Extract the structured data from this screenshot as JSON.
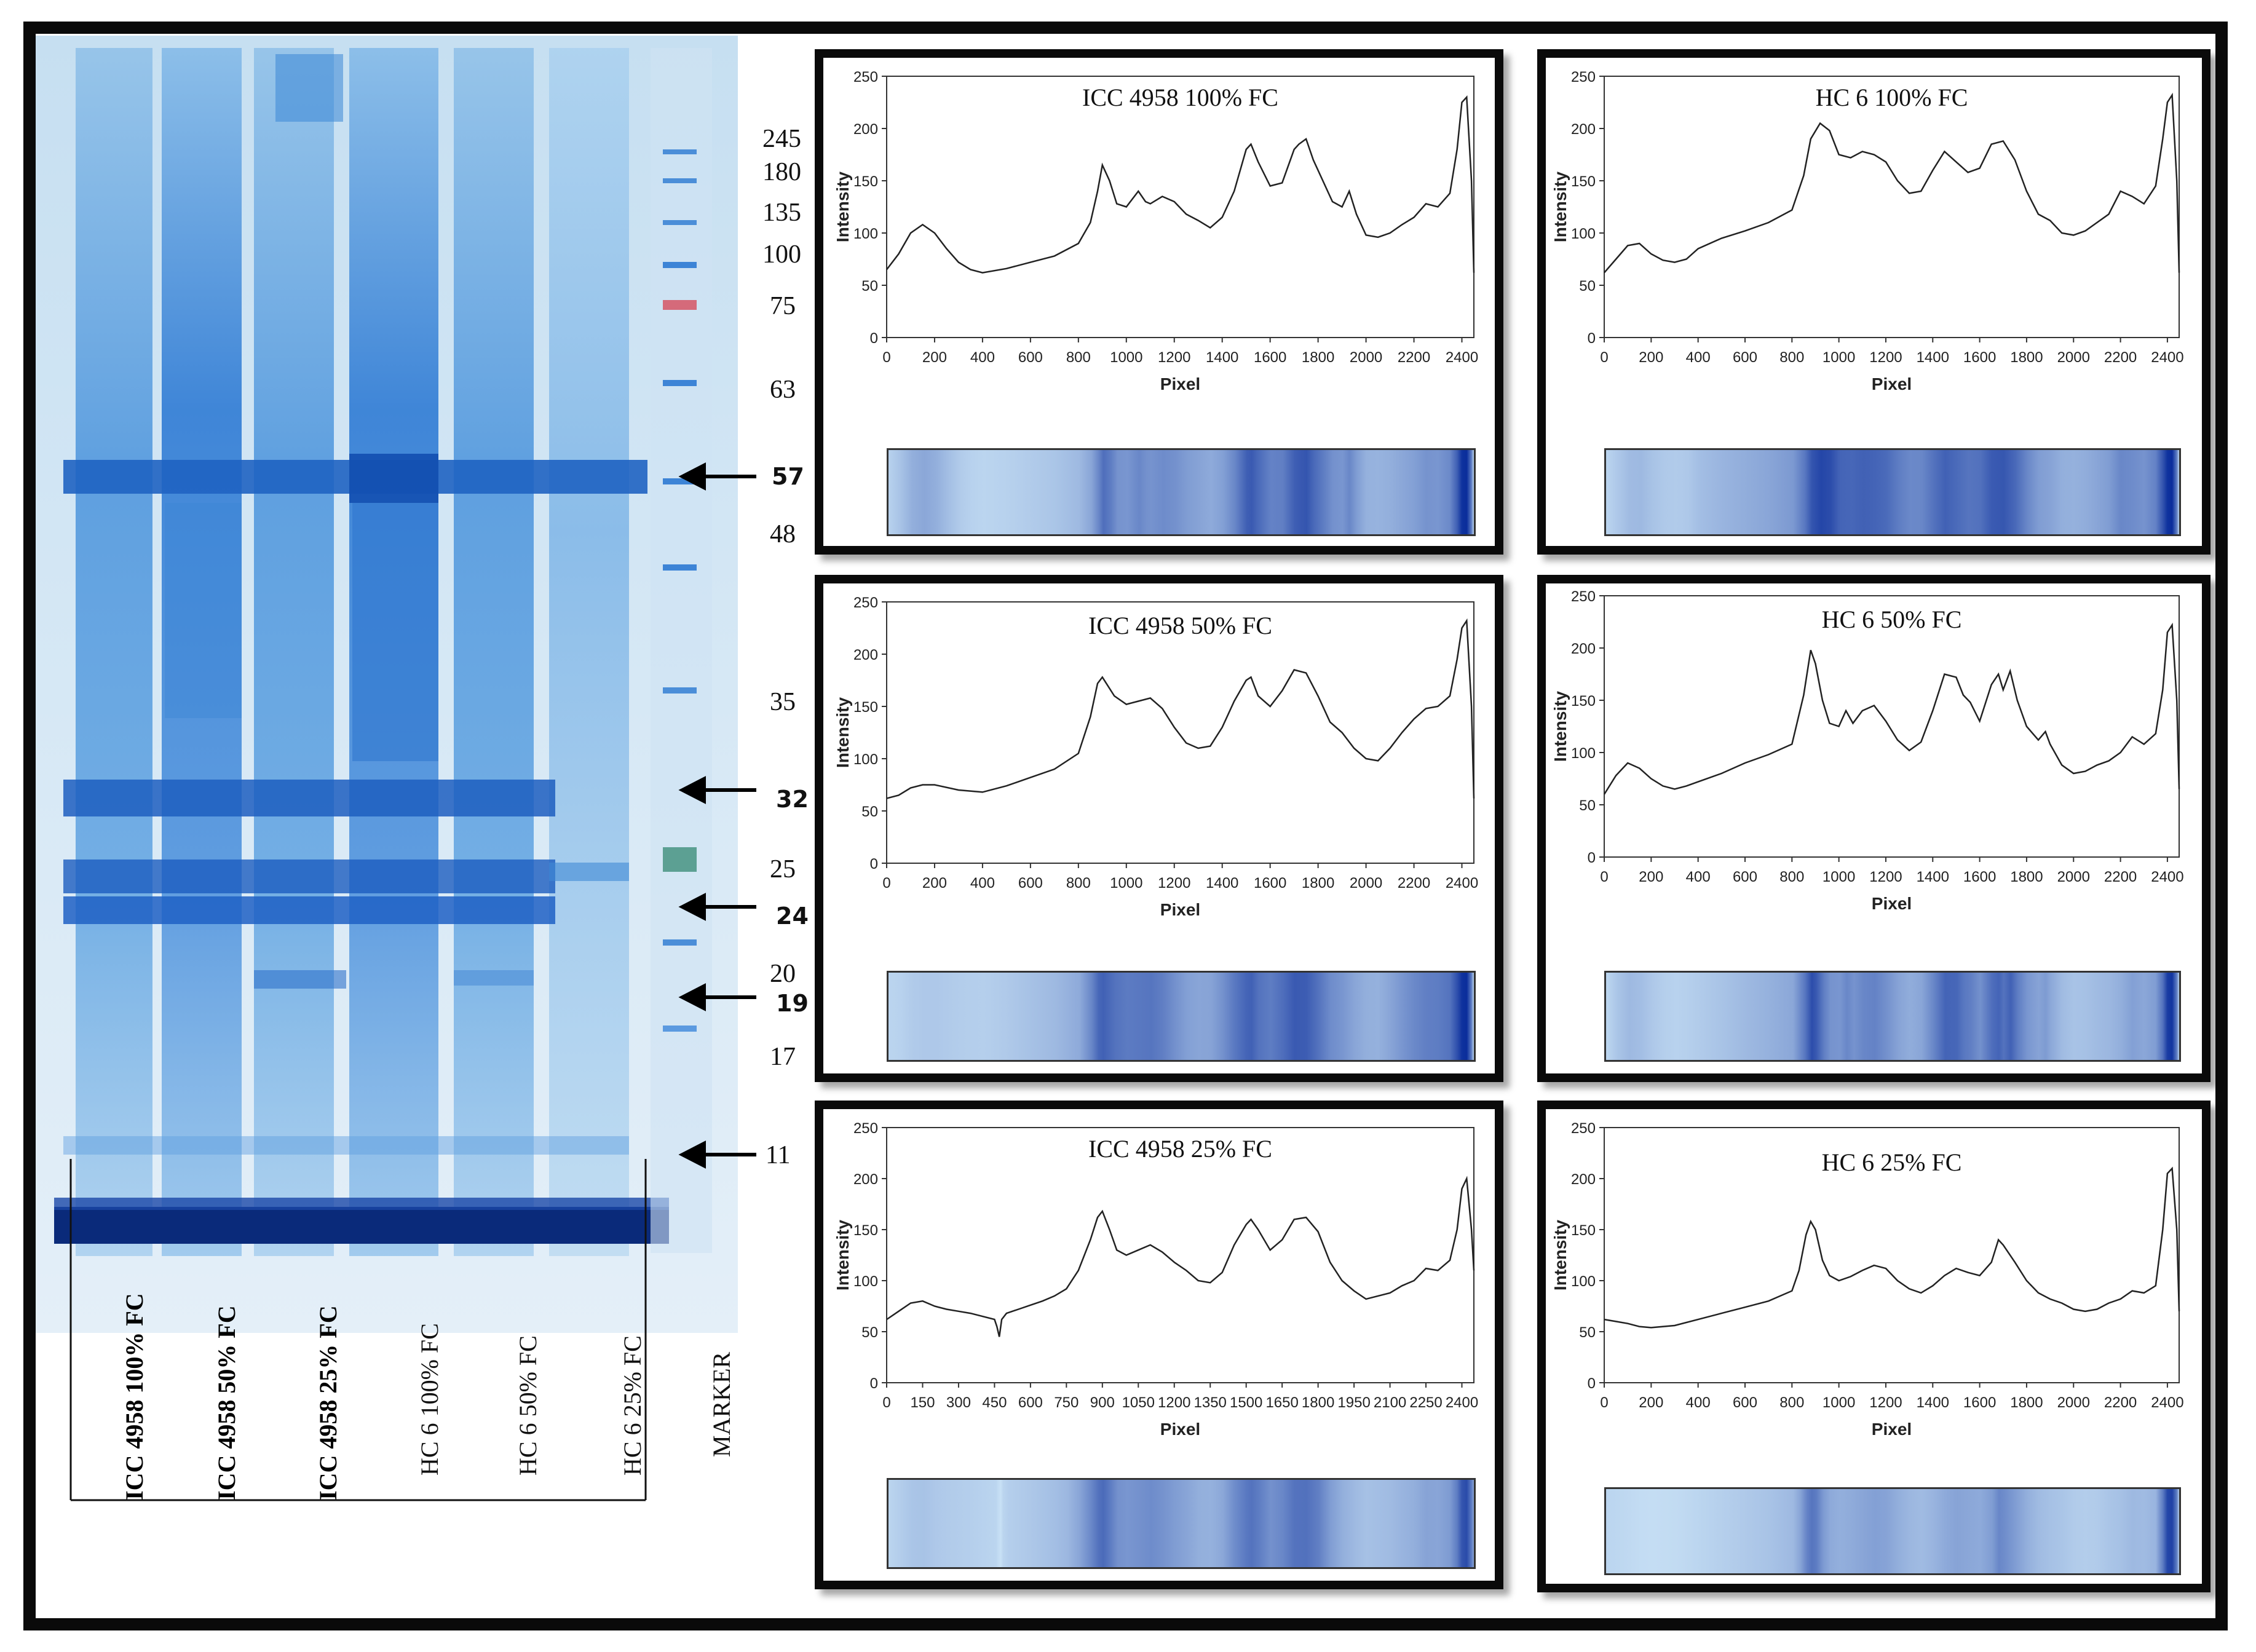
{
  "gel": {
    "mw_markers": [
      "245",
      "180",
      "135",
      "100",
      "75",
      "63",
      "48",
      "35",
      "25",
      "20",
      "17"
    ],
    "arrow_labels": [
      "57",
      "32",
      "24",
      "19",
      "11"
    ],
    "lanes": [
      "ICC 4958 100% FC",
      "ICC 4958 50% FC",
      "ICC 4958 25% FC",
      "HC 6 100% FC",
      "HC 6 50% FC",
      "HC 6 25% FC",
      "MARKER"
    ]
  },
  "chart_data": [
    {
      "type": "line",
      "title": "ICC 4958 100% FC",
      "xlabel": "Pixel",
      "ylabel": "Intensity",
      "xlim": [
        0,
        2450
      ],
      "ylim": [
        0,
        250
      ],
      "xticks": [
        "0",
        "200",
        "400",
        "600",
        "800",
        "1000",
        "1200",
        "1400",
        "1600",
        "1800",
        "2000",
        "2200",
        "2400"
      ],
      "yticks": [
        "0",
        "50",
        "100",
        "150",
        "200",
        "250"
      ],
      "x": [
        0,
        50,
        100,
        150,
        200,
        250,
        300,
        350,
        400,
        500,
        600,
        700,
        800,
        850,
        880,
        900,
        930,
        960,
        1000,
        1050,
        1080,
        1100,
        1150,
        1200,
        1250,
        1300,
        1350,
        1400,
        1450,
        1500,
        1520,
        1550,
        1600,
        1650,
        1700,
        1720,
        1750,
        1780,
        1820,
        1860,
        1900,
        1930,
        1960,
        2000,
        2050,
        2100,
        2150,
        2200,
        2250,
        2300,
        2350,
        2380,
        2400,
        2420,
        2440,
        2450
      ],
      "y": [
        65,
        80,
        100,
        108,
        100,
        85,
        72,
        65,
        62,
        66,
        72,
        78,
        90,
        110,
        140,
        165,
        150,
        128,
        125,
        140,
        130,
        128,
        135,
        130,
        118,
        112,
        105,
        115,
        140,
        180,
        185,
        168,
        145,
        148,
        180,
        185,
        190,
        170,
        150,
        130,
        125,
        140,
        118,
        98,
        96,
        100,
        108,
        115,
        128,
        125,
        138,
        180,
        225,
        230,
        150,
        62
      ]
    },
    {
      "type": "line",
      "title": "HC 6 100% FC",
      "xlabel": "Pixel",
      "ylabel": "Intensity",
      "xlim": [
        0,
        2450
      ],
      "ylim": [
        0,
        250
      ],
      "xticks": [
        "0",
        "200",
        "400",
        "600",
        "800",
        "1000",
        "1200",
        "1400",
        "1600",
        "1800",
        "2000",
        "2200",
        "2400"
      ],
      "yticks": [
        "0",
        "50",
        "100",
        "150",
        "200",
        "250"
      ],
      "x": [
        0,
        50,
        100,
        150,
        200,
        250,
        300,
        350,
        400,
        500,
        600,
        700,
        800,
        850,
        880,
        920,
        960,
        1000,
        1050,
        1100,
        1150,
        1200,
        1250,
        1300,
        1350,
        1400,
        1450,
        1500,
        1550,
        1600,
        1650,
        1700,
        1750,
        1800,
        1850,
        1900,
        1950,
        2000,
        2050,
        2100,
        2150,
        2200,
        2250,
        2300,
        2350,
        2380,
        2400,
        2420,
        2440,
        2450
      ],
      "y": [
        62,
        75,
        88,
        90,
        80,
        74,
        72,
        75,
        85,
        95,
        102,
        110,
        122,
        155,
        190,
        205,
        198,
        175,
        172,
        178,
        175,
        168,
        150,
        138,
        140,
        160,
        178,
        168,
        158,
        162,
        185,
        188,
        170,
        140,
        118,
        112,
        100,
        98,
        102,
        110,
        118,
        140,
        135,
        128,
        145,
        190,
        225,
        232,
        150,
        62
      ]
    },
    {
      "type": "line",
      "title": "ICC 4958 50% FC",
      "xlabel": "Pixel",
      "ylabel": "Intensity",
      "xlim": [
        0,
        2450
      ],
      "ylim": [
        0,
        250
      ],
      "xticks": [
        "0",
        "200",
        "400",
        "600",
        "800",
        "1000",
        "1200",
        "1400",
        "1600",
        "1800",
        "2000",
        "2200",
        "2400"
      ],
      "yticks": [
        "0",
        "50",
        "100",
        "150",
        "200",
        "250"
      ],
      "x": [
        0,
        50,
        100,
        150,
        200,
        300,
        400,
        500,
        600,
        700,
        800,
        850,
        880,
        900,
        950,
        1000,
        1050,
        1100,
        1150,
        1200,
        1250,
        1300,
        1350,
        1400,
        1450,
        1500,
        1520,
        1550,
        1600,
        1650,
        1700,
        1750,
        1800,
        1850,
        1900,
        1950,
        2000,
        2050,
        2100,
        2150,
        2200,
        2250,
        2300,
        2350,
        2380,
        2400,
        2420,
        2440,
        2450
      ],
      "y": [
        62,
        65,
        72,
        75,
        75,
        70,
        68,
        74,
        82,
        90,
        105,
        140,
        172,
        178,
        160,
        152,
        155,
        158,
        148,
        130,
        115,
        110,
        112,
        130,
        155,
        175,
        178,
        160,
        150,
        165,
        185,
        182,
        160,
        135,
        125,
        110,
        100,
        98,
        110,
        125,
        138,
        148,
        150,
        160,
        195,
        225,
        232,
        150,
        62
      ]
    },
    {
      "type": "line",
      "title": "HC 6 50% FC",
      "xlabel": "Pixel",
      "ylabel": "Intensity",
      "xlim": [
        0,
        2450
      ],
      "ylim": [
        0,
        250
      ],
      "xticks": [
        "0",
        "200",
        "400",
        "600",
        "800",
        "1000",
        "1200",
        "1400",
        "1600",
        "1800",
        "2000",
        "2200",
        "2400"
      ],
      "yticks": [
        "0",
        "50",
        "100",
        "150",
        "200",
        "250"
      ],
      "x": [
        0,
        50,
        100,
        150,
        200,
        250,
        300,
        350,
        400,
        500,
        600,
        700,
        800,
        850,
        880,
        900,
        930,
        960,
        1000,
        1030,
        1060,
        1100,
        1150,
        1200,
        1250,
        1300,
        1350,
        1400,
        1450,
        1500,
        1530,
        1560,
        1600,
        1650,
        1680,
        1700,
        1730,
        1760,
        1800,
        1850,
        1880,
        1900,
        1950,
        2000,
        2050,
        2100,
        2150,
        2200,
        2250,
        2300,
        2350,
        2380,
        2400,
        2420,
        2440,
        2450
      ],
      "y": [
        60,
        78,
        90,
        85,
        75,
        68,
        65,
        68,
        72,
        80,
        90,
        98,
        108,
        155,
        198,
        185,
        150,
        128,
        125,
        140,
        128,
        140,
        145,
        130,
        112,
        102,
        110,
        140,
        175,
        172,
        155,
        148,
        130,
        165,
        175,
        160,
        178,
        150,
        125,
        112,
        120,
        108,
        88,
        80,
        82,
        88,
        92,
        100,
        115,
        108,
        118,
        160,
        215,
        222,
        150,
        65
      ]
    },
    {
      "type": "line",
      "title": "ICC 4958 25% FC",
      "xlabel": "Pixel",
      "ylabel": "Intensity",
      "xlim": [
        0,
        2450
      ],
      "ylim": [
        0,
        250
      ],
      "xticks": [
        "0",
        "150",
        "300",
        "450",
        "600",
        "750",
        "900",
        "1050",
        "1200",
        "1350",
        "1500",
        "1650",
        "1800",
        "1950",
        "2100",
        "2250",
        "2400"
      ],
      "yticks": [
        "0",
        "50",
        "100",
        "150",
        "200",
        "250"
      ],
      "x": [
        0,
        50,
        100,
        150,
        200,
        250,
        300,
        350,
        400,
        450,
        460,
        470,
        480,
        500,
        550,
        600,
        650,
        700,
        750,
        800,
        850,
        880,
        900,
        930,
        960,
        1000,
        1050,
        1100,
        1150,
        1200,
        1250,
        1300,
        1350,
        1400,
        1450,
        1500,
        1520,
        1550,
        1600,
        1650,
        1700,
        1750,
        1800,
        1850,
        1900,
        1950,
        2000,
        2050,
        2100,
        2150,
        2200,
        2250,
        2300,
        2350,
        2380,
        2400,
        2420,
        2440,
        2450
      ],
      "y": [
        62,
        70,
        78,
        80,
        75,
        72,
        70,
        68,
        65,
        62,
        55,
        45,
        62,
        68,
        72,
        76,
        80,
        85,
        92,
        110,
        140,
        162,
        168,
        150,
        130,
        125,
        130,
        135,
        128,
        118,
        110,
        100,
        98,
        108,
        135,
        155,
        160,
        150,
        130,
        140,
        160,
        162,
        148,
        118,
        100,
        90,
        82,
        85,
        88,
        95,
        100,
        112,
        110,
        120,
        150,
        190,
        200,
        150,
        110
      ]
    },
    {
      "type": "line",
      "title": "HC 6 25% FC",
      "xlabel": "Pixel",
      "ylabel": "Intensity",
      "xlim": [
        0,
        2450
      ],
      "ylim": [
        0,
        250
      ],
      "xticks": [
        "0",
        "200",
        "400",
        "600",
        "800",
        "1000",
        "1200",
        "1400",
        "1600",
        "1800",
        "2000",
        "2200",
        "2400"
      ],
      "yticks": [
        "0",
        "50",
        "100",
        "150",
        "200",
        "250"
      ],
      "x": [
        0,
        50,
        100,
        150,
        200,
        300,
        400,
        500,
        600,
        700,
        750,
        800,
        830,
        860,
        880,
        900,
        930,
        960,
        1000,
        1050,
        1100,
        1150,
        1200,
        1250,
        1300,
        1350,
        1400,
        1450,
        1500,
        1550,
        1600,
        1650,
        1680,
        1700,
        1750,
        1800,
        1850,
        1900,
        1950,
        2000,
        2050,
        2100,
        2150,
        2200,
        2250,
        2300,
        2350,
        2380,
        2400,
        2420,
        2440,
        2450
      ],
      "y": [
        62,
        60,
        58,
        55,
        54,
        56,
        62,
        68,
        74,
        80,
        85,
        90,
        110,
        145,
        158,
        150,
        120,
        105,
        100,
        104,
        110,
        115,
        112,
        100,
        92,
        88,
        95,
        105,
        112,
        108,
        105,
        118,
        140,
        135,
        118,
        100,
        88,
        82,
        78,
        72,
        70,
        72,
        78,
        82,
        90,
        88,
        95,
        150,
        205,
        210,
        150,
        70
      ]
    }
  ]
}
